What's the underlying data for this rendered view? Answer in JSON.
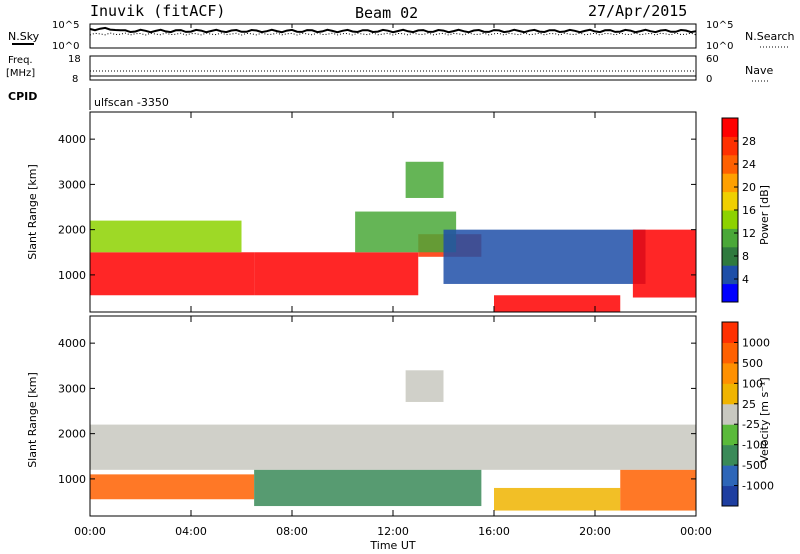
{
  "header": {
    "station": "Inuvik (fitACF)",
    "beam": "Beam 02",
    "date": "27/Apr/2015"
  },
  "top_strip": {
    "left_label": "N.Sky",
    "left_ticks": [
      "10^5",
      "10^0"
    ],
    "right_label": "N.Search",
    "right_ticks": [
      "10^5",
      "10^0"
    ]
  },
  "freq_strip": {
    "left_label_1": "Freq.",
    "left_label_2": "[MHz]",
    "left_ticks": [
      "18",
      "8"
    ],
    "right_label": "Nave",
    "right_ticks": [
      "60",
      "0"
    ]
  },
  "cpid": {
    "label": "CPID",
    "value": "ulfscan -3350"
  },
  "colors": {
    "power_scale": [
      "#0000ff",
      "#1e4fa8",
      "#2f7a3e",
      "#4aa838",
      "#8dd200",
      "#f0d000",
      "#ffa000",
      "#ff6000",
      "#ff3000",
      "#ff0000"
    ],
    "velocity_scale": [
      "#1e3ea0",
      "#2e66b8",
      "#3a8a58",
      "#5aba3a",
      "#c8c8c0",
      "#f0b400",
      "#ff9000",
      "#ff6000",
      "#ff3000"
    ],
    "ground_scatter": "#c8c8c0"
  },
  "chart_data": [
    {
      "type": "heatmap",
      "name": "power-panel",
      "ylabel": "Slant Range [km]",
      "yticks": [
        1000,
        2000,
        3000,
        4000
      ],
      "ylim": [
        180,
        4600
      ],
      "x_range_hours": [
        0,
        24
      ],
      "colorbar": {
        "label": "Power [dB]",
        "ticks": [
          "4",
          "8",
          "12",
          "16",
          "20",
          "24",
          "28"
        ]
      },
      "bands": [
        {
          "t0": 0.0,
          "t1": 6.5,
          "r0": 550,
          "r1": 1500,
          "level": 9
        },
        {
          "t0": 0.0,
          "t1": 6.0,
          "r0": 1500,
          "r1": 2200,
          "level": 4
        },
        {
          "t0": 6.5,
          "t1": 13.0,
          "r0": 550,
          "r1": 1500,
          "level": 9
        },
        {
          "t0": 13.0,
          "t1": 15.5,
          "r0": 1400,
          "r1": 1900,
          "level": 8
        },
        {
          "t0": 10.5,
          "t1": 14.5,
          "r0": 1500,
          "r1": 2400,
          "level": 3
        },
        {
          "t0": 14.0,
          "t1": 22.0,
          "r0": 800,
          "r1": 2000,
          "level": 1
        },
        {
          "t0": 16.0,
          "t1": 21.0,
          "r0": 180,
          "r1": 550,
          "level": 9
        },
        {
          "t0": 21.5,
          "t1": 24.0,
          "r0": 500,
          "r1": 2000,
          "level": 9
        },
        {
          "t0": 12.5,
          "t1": 14.0,
          "r0": 2700,
          "r1": 3500,
          "level": 3
        }
      ]
    },
    {
      "type": "heatmap",
      "name": "velocity-panel",
      "ylabel": "Slant Range [km]",
      "xlabel": "Time UT",
      "yticks": [
        1000,
        2000,
        3000,
        4000
      ],
      "ylim": [
        180,
        4600
      ],
      "x_range_hours": [
        0,
        24
      ],
      "xticks": [
        "00:00",
        "04:00",
        "08:00",
        "12:00",
        "16:00",
        "20:00",
        "00:00"
      ],
      "colorbar": {
        "label": "Velocity [m s⁻¹]",
        "ticks": [
          "1000",
          "500",
          "100",
          "25",
          "-25",
          "-100",
          "-500",
          "-1000"
        ]
      },
      "bands": [
        {
          "t0": 0.0,
          "t1": 6.5,
          "r0": 550,
          "r1": 1100,
          "level": 7
        },
        {
          "t0": 0.0,
          "t1": 24.0,
          "r0": 1200,
          "r1": 2200,
          "level": 4
        },
        {
          "t0": 6.5,
          "t1": 15.5,
          "r0": 400,
          "r1": 1200,
          "level": 2
        },
        {
          "t0": 16.0,
          "t1": 21.0,
          "r0": 300,
          "r1": 800,
          "level": 5
        },
        {
          "t0": 21.0,
          "t1": 24.0,
          "r0": 300,
          "r1": 1200,
          "level": 7
        },
        {
          "t0": 12.5,
          "t1": 14.0,
          "r0": 2700,
          "r1": 3400,
          "level": 4
        }
      ]
    }
  ],
  "x_axis": {
    "label": "Time UT",
    "ticks": [
      "00:00",
      "04:00",
      "08:00",
      "12:00",
      "16:00",
      "20:00",
      "00:00"
    ]
  }
}
